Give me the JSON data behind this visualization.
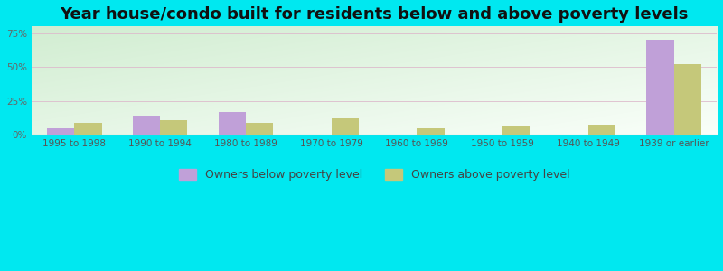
{
  "title": "Year house/condo built for residents below and above poverty levels",
  "categories": [
    "1995 to 1998",
    "1990 to 1994",
    "1980 to 1989",
    "1970 to 1979",
    "1960 to 1969",
    "1950 to 1959",
    "1940 to 1949",
    "1939 or earlier"
  ],
  "below_poverty": [
    5.0,
    14.0,
    17.0,
    0.0,
    0.0,
    0.0,
    0.0,
    70.0
  ],
  "above_poverty": [
    9.0,
    11.0,
    9.0,
    12.0,
    4.5,
    7.0,
    7.5,
    52.0
  ],
  "below_color": "#c0a0d8",
  "above_color": "#c5c87a",
  "outer_bg": "#00e8f0",
  "yticks": [
    0,
    25,
    50,
    75
  ],
  "ytick_labels": [
    "0%",
    "25%",
    "50%",
    "75%"
  ],
  "ylim": [
    0,
    80
  ],
  "legend_below": "Owners below poverty level",
  "legend_above": "Owners above poverty level",
  "title_fontsize": 13,
  "tick_fontsize": 7.5,
  "legend_fontsize": 9,
  "bar_width": 0.32
}
